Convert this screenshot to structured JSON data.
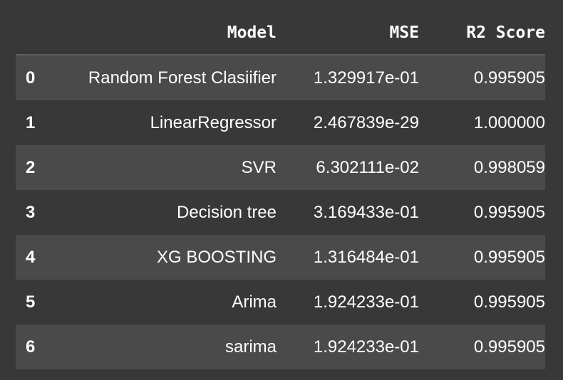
{
  "table": {
    "headers": {
      "index": "",
      "model": "Model",
      "mse": "MSE",
      "r2": "R2 Score"
    },
    "rows": [
      {
        "index": "0",
        "model": "Random Forest Clasiifier",
        "mse": "1.329917e-01",
        "r2": "0.995905"
      },
      {
        "index": "1",
        "model": "LinearRegressor",
        "mse": "2.467839e-29",
        "r2": "1.000000"
      },
      {
        "index": "2",
        "model": "SVR",
        "mse": "6.302111e-02",
        "r2": "0.998059"
      },
      {
        "index": "3",
        "model": "Decision tree",
        "mse": "3.169433e-01",
        "r2": "0.995905"
      },
      {
        "index": "4",
        "model": "XG BOOSTING",
        "mse": "1.316484e-01",
        "r2": "0.995905"
      },
      {
        "index": "5",
        "model": "Arima",
        "mse": "1.924233e-01",
        "r2": "0.995905"
      },
      {
        "index": "6",
        "model": "sarima",
        "mse": "1.924233e-01",
        "r2": "0.995905"
      }
    ]
  },
  "colors": {
    "background": "#383838",
    "row_stripe": "#4a4a4a",
    "text": "#ffffff",
    "header_rule": "#5e5e5e"
  }
}
